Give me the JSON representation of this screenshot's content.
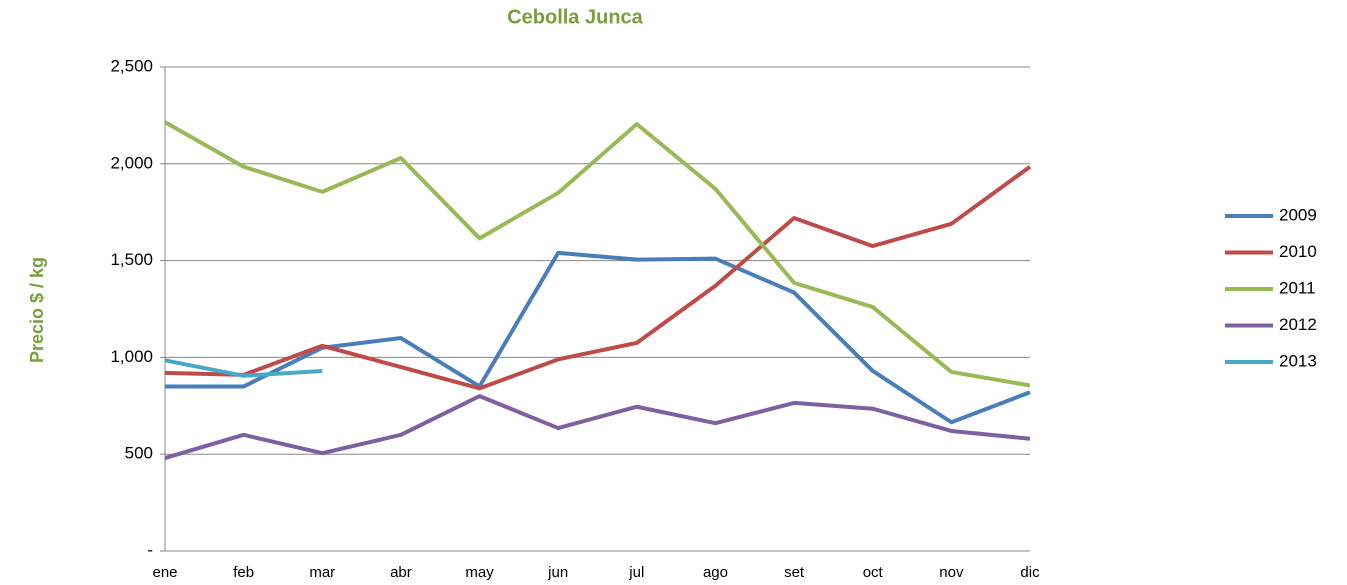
{
  "chart_data": {
    "type": "line",
    "title": "Cebolla Junca",
    "y_label": "Precio $ / kg",
    "categories": [
      "ene",
      "feb",
      "mar",
      "abr",
      "may",
      "jun",
      "jul",
      "ago",
      "set",
      "oct",
      "nov",
      "dic"
    ],
    "series": [
      {
        "name": "2009",
        "color": "#4a7ebb",
        "values": [
          850,
          850,
          1050,
          1100,
          850,
          1540,
          1505,
          1510,
          1335,
          930,
          665,
          820
        ]
      },
      {
        "name": "2010",
        "color": "#be4b48",
        "values": [
          920,
          910,
          1060,
          950,
          840,
          990,
          1075,
          1370,
          1720,
          1575,
          1690,
          1985
        ]
      },
      {
        "name": "2011",
        "color": "#98b954",
        "values": [
          2215,
          1985,
          1855,
          2030,
          1615,
          1850,
          2205,
          1870,
          1385,
          1260,
          925,
          855
        ]
      },
      {
        "name": "2012",
        "color": "#7d60a0",
        "values": [
          480,
          600,
          505,
          600,
          800,
          635,
          745,
          660,
          765,
          735,
          620,
          580
        ]
      },
      {
        "name": "2013",
        "color": "#46aac5",
        "values": [
          985,
          905,
          930,
          null,
          null,
          null,
          null,
          null,
          null,
          null,
          null,
          null
        ]
      }
    ],
    "ylim": [
      0,
      2500
    ],
    "yticks": [
      {
        "value": 0,
        "label": "-"
      },
      500,
      {
        "value": 1000,
        "label": "1,000"
      },
      {
        "value": 1500,
        "label": "1,500"
      },
      {
        "value": 2000,
        "label": "2,000"
      },
      {
        "value": 2500,
        "label": "2,500"
      }
    ],
    "grid": true,
    "legend": "right"
  }
}
